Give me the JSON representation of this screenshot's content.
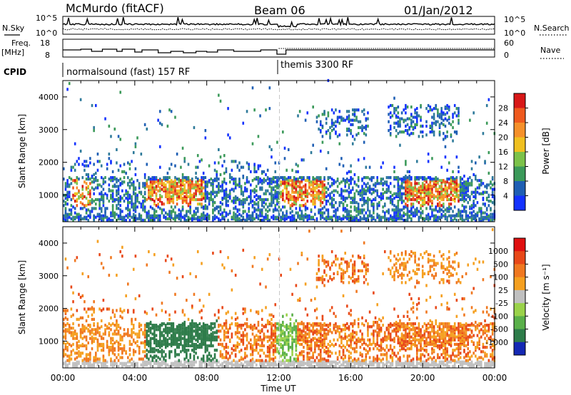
{
  "header": {
    "station": "McMurdo (fitACF)",
    "beam": "Beam 06",
    "date": "01/Jan/2012"
  },
  "strip_nsky": {
    "left_label": "N.Sky",
    "left_ticks": [
      "10^5",
      "10^0"
    ],
    "right_ticks": [
      "10^5",
      "10^0"
    ],
    "right_label": "N.Search"
  },
  "strip_freq": {
    "left_label_line1": "Freq.",
    "left_label_line2": "[MHz]",
    "left_ticks": [
      "18",
      "8"
    ],
    "right_ticks": [
      "60",
      "0"
    ],
    "right_label": "Nave"
  },
  "cpid": {
    "label": "CPID",
    "mode1": "normalsound (fast) 157 RF",
    "mode2": "themis 3300 RF"
  },
  "chart_data": [
    {
      "type": "heatmap",
      "name": "power-panel",
      "ylabel": "Slant Range [km]",
      "ylim": [
        180,
        4500
      ],
      "yticks": [
        "1000",
        "2000",
        "3000",
        "4000"
      ],
      "colorbar_label": "Power [dB]",
      "colorbar_ticks": [
        "4",
        "8",
        "12",
        "16",
        "20",
        "24",
        "28"
      ],
      "colorbar_colors": [
        "#1432ff",
        "#1f5fb4",
        "#3c9a5a",
        "#7cc24a",
        "#f0c020",
        "#f5902a",
        "#ef5a1e",
        "#d81818"
      ]
    },
    {
      "type": "heatmap",
      "name": "velocity-panel",
      "ylabel": "Slant Range [km]",
      "ylim": [
        180,
        4500
      ],
      "yticks": [
        "1000",
        "2000",
        "3000",
        "4000"
      ],
      "xlabel": "Time UT",
      "xticks": [
        "00:00",
        "04:00",
        "08:00",
        "12:00",
        "16:00",
        "20:00",
        "00:00"
      ],
      "colorbar_label": "Velocity [m s⁻¹]",
      "colorbar_ticks": [
        "1000",
        "500",
        "100",
        "25",
        "-25",
        "-100",
        "-500",
        "-1000"
      ],
      "colorbar_colors": [
        "#1428b4",
        "#2e7c4a",
        "#5ab04a",
        "#9ad24a",
        "#c0c0c0",
        "#f5a020",
        "#f07820",
        "#e84818",
        "#e01010"
      ]
    }
  ]
}
